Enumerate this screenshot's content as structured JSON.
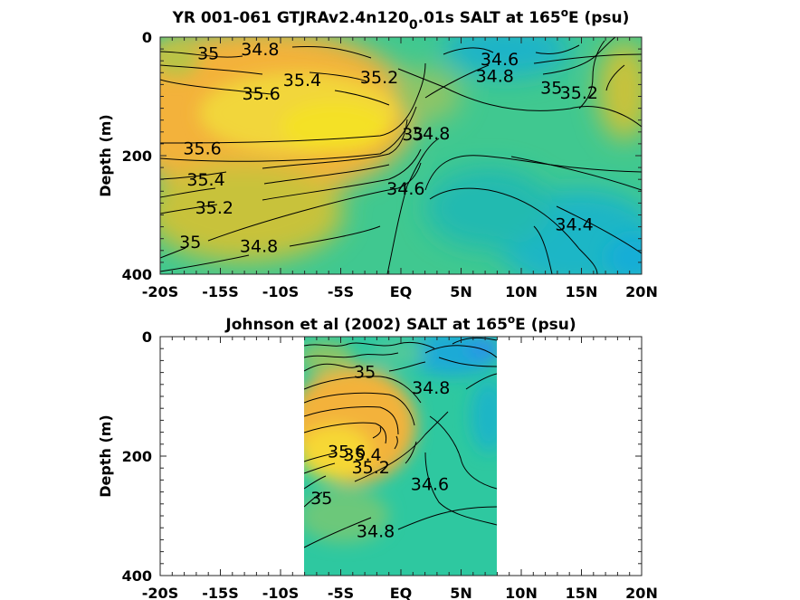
{
  "chart_data": [
    {
      "type": "heatmap",
      "title_parts": [
        "YR 001-061 GTJRAv2.4n120",
        "0",
        ".01s SALT at 165",
        "o",
        "E (psu)"
      ],
      "ylabel": "Depth (m)",
      "xlim": [
        -20,
        20
      ],
      "ylim": [
        0,
        400
      ],
      "y_reversed": true,
      "xtick_labels": [
        "-20S",
        "-15S",
        "-10S",
        "-5S",
        "EQ",
        "5N",
        "10N",
        "15N",
        "20N"
      ],
      "xtick_values": [
        -20,
        -15,
        -10,
        -5,
        0,
        5,
        10,
        15,
        20
      ],
      "ytick_labels": [
        "0",
        "200",
        "400"
      ],
      "ytick_values": [
        0,
        200,
        400
      ],
      "colormap": "parula",
      "color_range": [
        34.2,
        35.8
      ],
      "data_extent_x": [
        -20,
        20
      ],
      "contour_labels": [
        {
          "text": "35",
          "lat": -16.0,
          "depth": 27
        },
        {
          "text": "34.8",
          "lat": -11.7,
          "depth": 20
        },
        {
          "text": "35.4",
          "lat": -8.2,
          "depth": 72
        },
        {
          "text": "35.2",
          "lat": -1.8,
          "depth": 67
        },
        {
          "text": "35.6",
          "lat": -11.6,
          "depth": 95
        },
        {
          "text": "34.6",
          "lat": 8.2,
          "depth": 37
        },
        {
          "text": "34.8",
          "lat": 7.8,
          "depth": 65
        },
        {
          "text": "35",
          "lat": 12.5,
          "depth": 85
        },
        {
          "text": "35.2",
          "lat": 14.8,
          "depth": 93
        },
        {
          "text": "35",
          "lat": 1.0,
          "depth": 163
        },
        {
          "text": "34.8",
          "lat": 2.5,
          "depth": 162
        },
        {
          "text": "35.6",
          "lat": -16.5,
          "depth": 187
        },
        {
          "text": "35.4",
          "lat": -16.2,
          "depth": 240
        },
        {
          "text": "35.2",
          "lat": -15.5,
          "depth": 287
        },
        {
          "text": "34.6",
          "lat": 0.4,
          "depth": 255
        },
        {
          "text": "35",
          "lat": -17.5,
          "depth": 345
        },
        {
          "text": "34.8",
          "lat": -11.8,
          "depth": 352
        },
        {
          "text": "34.4",
          "lat": 14.4,
          "depth": 315
        }
      ]
    },
    {
      "type": "heatmap",
      "title_parts": [
        "Johnson et al (2002) SALT at 165",
        "o",
        "E (psu)"
      ],
      "ylabel": "Depth (m)",
      "xlim": [
        -20,
        20
      ],
      "ylim": [
        0,
        400
      ],
      "y_reversed": true,
      "xtick_labels": [
        "-20S",
        "-15S",
        "-10S",
        "-5S",
        "EQ",
        "5N",
        "10N",
        "15N",
        "20N"
      ],
      "xtick_values": [
        -20,
        -15,
        -10,
        -5,
        0,
        5,
        10,
        15,
        20
      ],
      "ytick_labels": [
        "0",
        "200",
        "400"
      ],
      "ytick_values": [
        0,
        200,
        400
      ],
      "colormap": "parula",
      "color_range": [
        34.2,
        35.8
      ],
      "data_extent_x": [
        -8,
        8
      ],
      "contour_labels": [
        {
          "text": "35",
          "lat": -3.0,
          "depth": 58
        },
        {
          "text": "34.8",
          "lat": 2.5,
          "depth": 85
        },
        {
          "text": "35.6",
          "lat": -4.5,
          "depth": 192
        },
        {
          "text": "35.4",
          "lat": -3.2,
          "depth": 197
        },
        {
          "text": "35.2",
          "lat": -2.5,
          "depth": 218
        },
        {
          "text": "34.6",
          "lat": 2.4,
          "depth": 246
        },
        {
          "text": "35",
          "lat": -6.6,
          "depth": 270
        },
        {
          "text": "34.8",
          "lat": -2.1,
          "depth": 325
        }
      ]
    }
  ]
}
